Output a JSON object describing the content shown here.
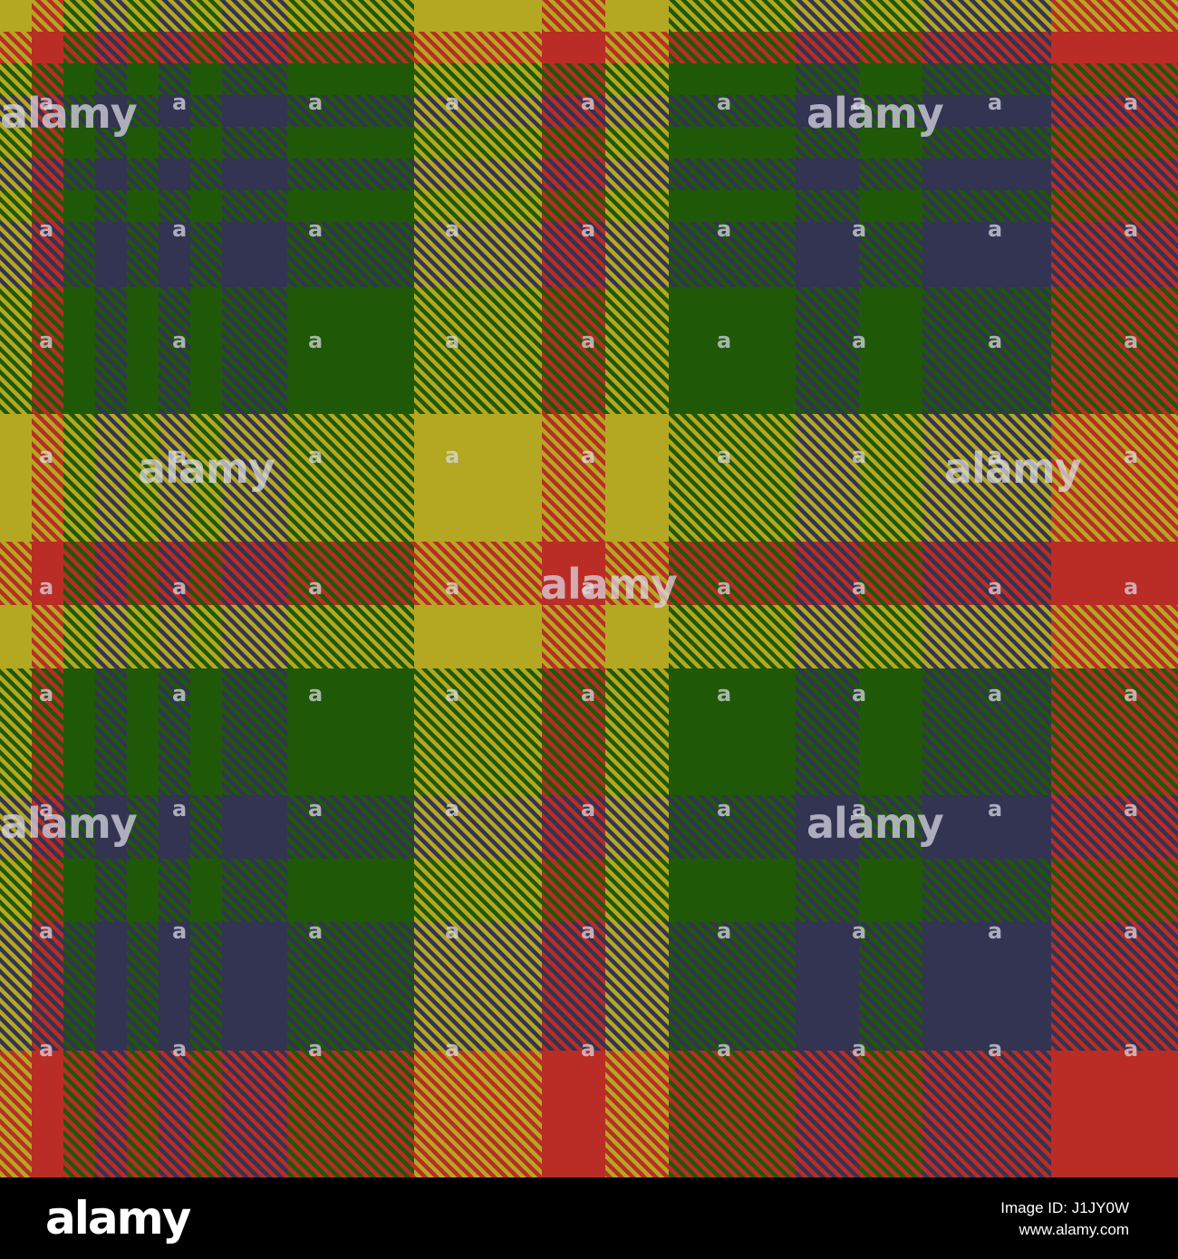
{
  "image": {
    "subject": "Tartan plaid fabric texture",
    "palette": {
      "red": "#b92d26",
      "yellow": "#b4a822",
      "green": "#1f5807",
      "navy": "#333352"
    },
    "watermark_text": "alamy",
    "watermark_glyph": "a"
  },
  "footer": {
    "logo": "alamy",
    "image_id_label": "Image ID: J1JY0W",
    "site": "www.alamy.com"
  }
}
